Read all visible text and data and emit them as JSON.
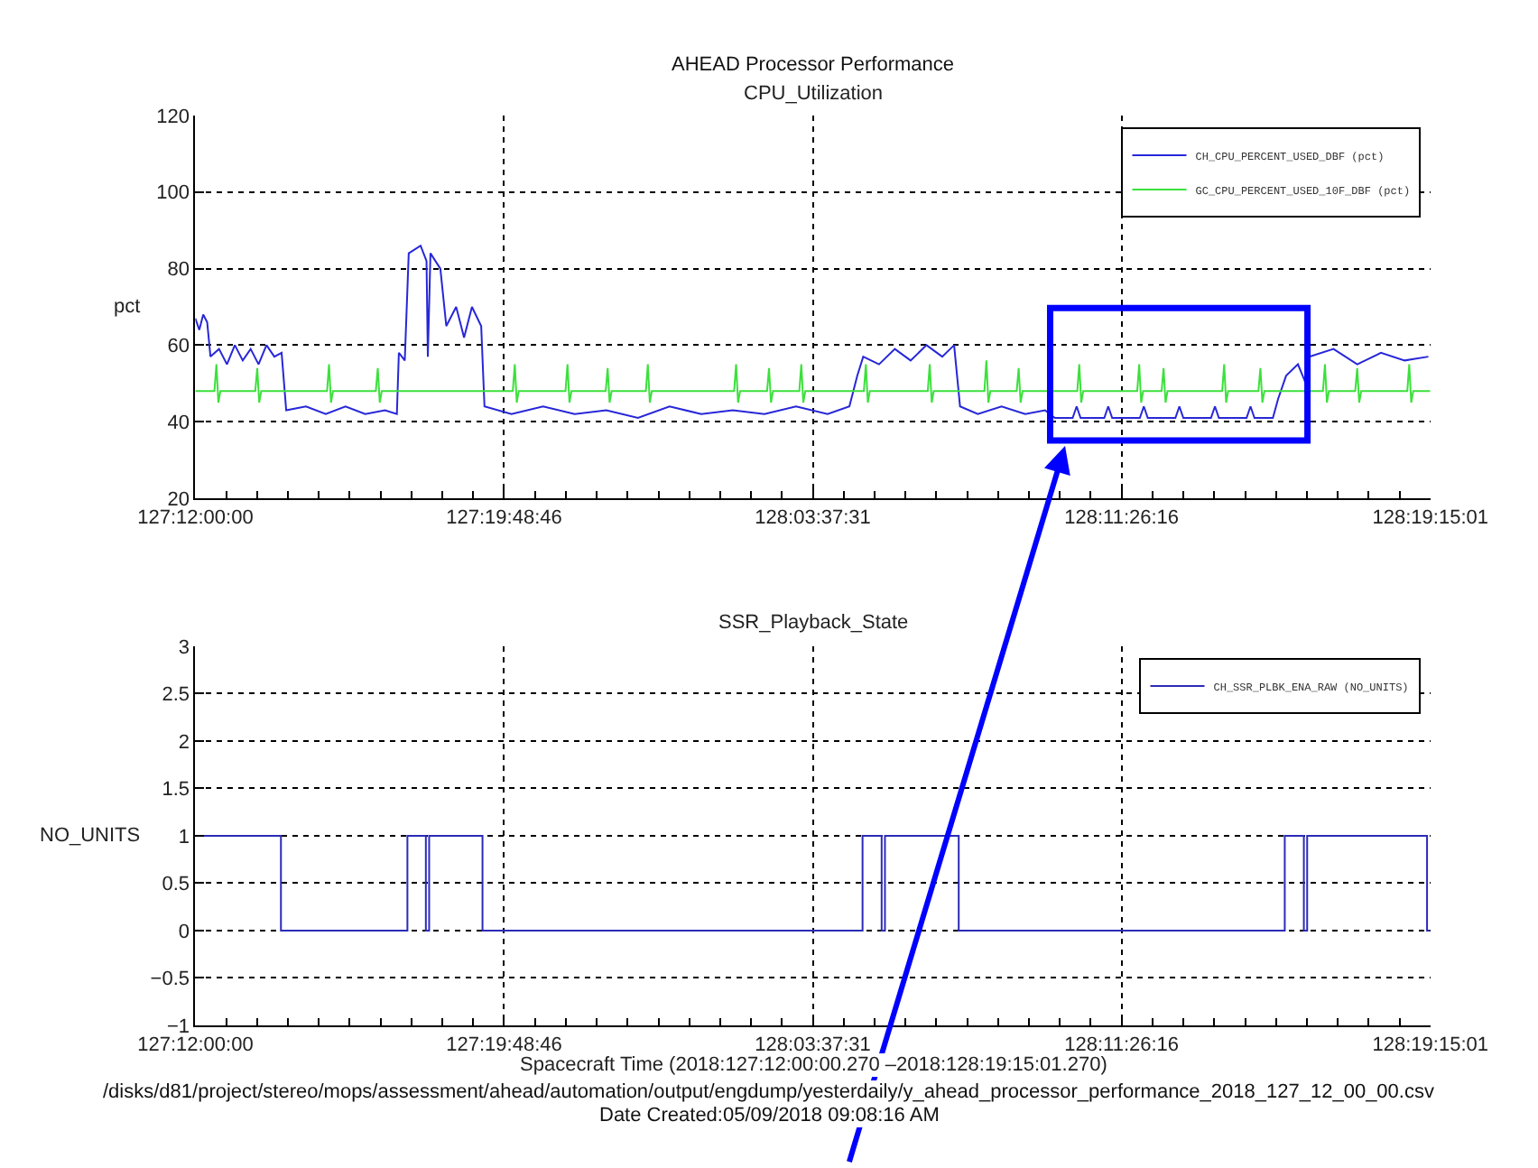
{
  "chart_data": [
    {
      "type": "line",
      "title": "AHEAD Processor Performance",
      "subtitle": "CPU_Utilization",
      "ylabel": "pct",
      "xlim": [
        "2018-05-07T12:00:00",
        "2018-05-08T19:15:01"
      ],
      "xticks": [
        {
          "value": "2018-05-07T12:00:00",
          "label": "127:12:00:00"
        },
        {
          "value": "2018-05-07T19:48:46",
          "label": "127:19:48:46"
        },
        {
          "value": "2018-05-08T03:37:31",
          "label": "128:03:37:31"
        },
        {
          "value": "2018-05-08T11:26:16",
          "label": "128:11:26:16"
        },
        {
          "value": "2018-05-08T19:15:01",
          "label": "128:19:15:01"
        }
      ],
      "ylim": [
        20,
        120
      ],
      "yticks": [
        20,
        40,
        60,
        80,
        100,
        120
      ],
      "grid": true,
      "legend": "top right",
      "series": [
        {
          "name": "CH_CPU_PERCENT_USED_DBF (pct)",
          "color": "#2727d8",
          "x": [
            "2018-05-07T12:00",
            "2018-05-07T12:06",
            "2018-05-07T12:12",
            "2018-05-07T12:18",
            "2018-05-07T12:23",
            "2018-05-07T12:36",
            "2018-05-07T12:48",
            "2018-05-07T13:00",
            "2018-05-07T13:12",
            "2018-05-07T13:24",
            "2018-05-07T13:36",
            "2018-05-07T13:48",
            "2018-05-07T14:00",
            "2018-05-07T14:11",
            "2018-05-07T14:18",
            "2018-05-07T14:48",
            "2018-05-07T15:18",
            "2018-05-07T15:48",
            "2018-05-07T16:18",
            "2018-05-07T16:48",
            "2018-05-07T17:06",
            "2018-05-07T17:09",
            "2018-05-07T17:18",
            "2018-05-07T17:24",
            "2018-05-07T17:42",
            "2018-05-07T17:51",
            "2018-05-07T17:53",
            "2018-05-07T17:57",
            "2018-05-07T18:12",
            "2018-05-07T18:21",
            "2018-05-07T18:36",
            "2018-05-07T18:48",
            "2018-05-07T19:00",
            "2018-05-07T19:14",
            "2018-05-07T19:19",
            "2018-05-07T20:00",
            "2018-05-07T20:48",
            "2018-05-07T21:36",
            "2018-05-07T22:24",
            "2018-05-07T23:12",
            "2018-05-08T00:00",
            "2018-05-08T00:48",
            "2018-05-08T01:36",
            "2018-05-08T02:24",
            "2018-05-08T03:12",
            "2018-05-08T04:00",
            "2018-05-08T04:33",
            "2018-05-08T04:45",
            "2018-05-08T04:54",
            "2018-05-08T05:18",
            "2018-05-08T05:42",
            "2018-05-08T06:06",
            "2018-05-08T06:30",
            "2018-05-08T06:54",
            "2018-05-08T07:12",
            "2018-05-08T07:21",
            "2018-05-08T07:48",
            "2018-05-08T08:24",
            "2018-05-08T09:00",
            "2018-05-08T09:30",
            "2018-05-08T09:45",
            "2018-05-08T10:12",
            "2018-05-08T10:18",
            "2018-05-08T10:24",
            "2018-05-08T11:00",
            "2018-05-08T11:06",
            "2018-05-08T11:12",
            "2018-05-08T11:54",
            "2018-05-08T12:00",
            "2018-05-08T12:06",
            "2018-05-08T12:48",
            "2018-05-08T12:54",
            "2018-05-08T13:00",
            "2018-05-08T13:42",
            "2018-05-08T13:48",
            "2018-05-08T13:54",
            "2018-05-08T14:36",
            "2018-05-08T14:42",
            "2018-05-08T14:48",
            "2018-05-08T15:16",
            "2018-05-08T15:24",
            "2018-05-08T15:36",
            "2018-05-08T15:54",
            "2018-05-08T16:06",
            "2018-05-08T16:12",
            "2018-05-08T16:48",
            "2018-05-08T17:24",
            "2018-05-08T18:00",
            "2018-05-08T18:36",
            "2018-05-08T19:12"
          ],
          "values": [
            67,
            64,
            68,
            66,
            57,
            59,
            55,
            60,
            56,
            59,
            55,
            60,
            57,
            58,
            43,
            44,
            42,
            44,
            42,
            43,
            42,
            58,
            56,
            84,
            86,
            82,
            57,
            84,
            80,
            65,
            70,
            62,
            70,
            65,
            44,
            42,
            44,
            42,
            43,
            41,
            44,
            42,
            43,
            42,
            44,
            42,
            44,
            52,
            57,
            55,
            59,
            56,
            60,
            57,
            60,
            44,
            42,
            44,
            42,
            43,
            41,
            41,
            44,
            41,
            41,
            44,
            41,
            41,
            44,
            41,
            41,
            44,
            41,
            41,
            44,
            41,
            41,
            44,
            41,
            41,
            46,
            52,
            55,
            50,
            57,
            59,
            55,
            58,
            56,
            57
          ]
        },
        {
          "name": "GC_CPU_PERCENT_USED_10F_DBF (pct)",
          "color": "#3ce03c",
          "x": [
            "2018-05-07T12:00",
            "2018-05-07T12:29",
            "2018-05-07T12:32",
            "2018-05-07T12:35",
            "2018-05-07T12:38",
            "2018-05-07T13:31",
            "2018-05-07T13:34",
            "2018-05-07T13:37",
            "2018-05-07T13:40",
            "2018-05-07T15:20",
            "2018-05-07T15:23",
            "2018-05-07T15:26",
            "2018-05-07T15:29",
            "2018-05-07T16:34",
            "2018-05-07T16:37",
            "2018-05-07T16:40",
            "2018-05-07T16:43",
            "2018-05-07T20:02",
            "2018-05-07T20:05",
            "2018-05-07T20:08",
            "2018-05-07T20:11",
            "2018-05-07T21:22",
            "2018-05-07T21:25",
            "2018-05-07T21:28",
            "2018-05-07T21:31",
            "2018-05-07T22:23",
            "2018-05-07T22:26",
            "2018-05-07T22:29",
            "2018-05-07T22:32",
            "2018-05-07T23:24",
            "2018-05-07T23:27",
            "2018-05-07T23:30",
            "2018-05-07T23:33",
            "2018-05-08T01:38",
            "2018-05-08T01:41",
            "2018-05-08T01:44",
            "2018-05-08T01:47",
            "2018-05-08T02:28",
            "2018-05-08T02:31",
            "2018-05-08T02:34",
            "2018-05-08T02:37",
            "2018-05-08T03:17",
            "2018-05-08T03:20",
            "2018-05-08T03:23",
            "2018-05-08T03:26",
            "2018-05-08T04:55",
            "2018-05-08T04:58",
            "2018-05-08T05:01",
            "2018-05-08T05:04",
            "2018-05-08T06:32",
            "2018-05-08T06:35",
            "2018-05-08T06:38",
            "2018-05-08T06:41",
            "2018-05-08T07:58",
            "2018-05-08T08:01",
            "2018-05-08T08:04",
            "2018-05-08T08:07",
            "2018-05-08T08:47",
            "2018-05-08T08:50",
            "2018-05-08T08:53",
            "2018-05-08T08:56",
            "2018-05-08T10:19",
            "2018-05-08T10:22",
            "2018-05-08T10:25",
            "2018-05-08T10:28",
            "2018-05-08T11:50",
            "2018-05-08T11:53",
            "2018-05-08T11:56",
            "2018-05-08T11:59",
            "2018-05-08T12:27",
            "2018-05-08T12:30",
            "2018-05-08T12:33",
            "2018-05-08T12:36",
            "2018-05-08T13:59",
            "2018-05-08T14:02",
            "2018-05-08T14:05",
            "2018-05-08T14:08",
            "2018-05-08T14:54",
            "2018-05-08T14:57",
            "2018-05-08T15:00",
            "2018-05-08T15:03",
            "2018-05-08T16:32",
            "2018-05-08T16:35",
            "2018-05-08T16:38",
            "2018-05-08T16:41",
            "2018-05-08T17:21",
            "2018-05-08T17:24",
            "2018-05-08T17:27",
            "2018-05-08T17:30",
            "2018-05-08T18:40",
            "2018-05-08T18:43",
            "2018-05-08T18:46",
            "2018-05-08T18:49",
            "2018-05-08T19:15"
          ],
          "values": [
            48,
            48,
            55,
            45,
            48,
            48,
            54,
            45,
            48,
            48,
            55,
            45,
            48,
            48,
            54,
            45,
            48,
            48,
            55,
            45,
            48,
            48,
            55,
            45,
            48,
            48,
            54,
            45,
            48,
            48,
            55,
            45,
            48,
            48,
            55,
            45,
            48,
            48,
            54,
            45,
            48,
            48,
            55,
            45,
            48,
            48,
            55,
            45,
            48,
            48,
            55,
            45,
            48,
            48,
            56,
            45,
            48,
            48,
            54,
            45,
            48,
            48,
            55,
            45,
            48,
            48,
            55,
            45,
            48,
            48,
            54,
            45,
            48,
            48,
            55,
            45,
            48,
            48,
            54,
            45,
            48,
            48,
            55,
            45,
            48,
            48,
            54,
            45,
            48,
            48,
            55,
            45,
            48,
            48
          ]
        }
      ]
    },
    {
      "type": "step",
      "title": "SSR_Playback_State",
      "xlabel": "Spacecraft Time (2018:127:12:00:00.270 –2018:128:19:15:01.270)",
      "ylabel": "NO_UNITS",
      "annotations": [
        "/disks/d81/project/stereo/mops/assessment/ahead/automation/output/engdump/yesterdaily/y_ahead_processor_performance_2018_127_12_00_00.csv",
        "Date Created:05/09/2018 09:08:16 AM"
      ],
      "xlim": [
        "2018-05-07T12:00:00",
        "2018-05-08T19:15:01"
      ],
      "xticks": [
        {
          "value": "2018-05-07T12:00:00",
          "label": "127:12:00:00"
        },
        {
          "value": "2018-05-07T19:48:46",
          "label": "127:19:48:46"
        },
        {
          "value": "2018-05-08T03:37:31",
          "label": "128:03:37:31"
        },
        {
          "value": "2018-05-08T11:26:16",
          "label": "128:11:26:16"
        },
        {
          "value": "2018-05-08T19:15:01",
          "label": "128:19:15:01"
        }
      ],
      "ylim": [
        -1,
        3
      ],
      "yticks": [
        -1,
        -0.5,
        0,
        0.5,
        1,
        1.5,
        2,
        2.5,
        3
      ],
      "grid": true,
      "legend": "top right",
      "series": [
        {
          "name": "CH_SSR_PLBK_ENA_RAW (NO_UNITS)",
          "color": "#2b2bb8",
          "x": [
            "2018-05-07T12:00",
            "2018-05-07T14:10",
            "2018-05-07T17:22",
            "2018-05-07T17:50",
            "2018-05-07T17:55",
            "2018-05-07T19:16",
            "2018-05-08T04:53",
            "2018-05-08T05:22",
            "2018-05-08T05:27",
            "2018-05-08T07:19",
            "2018-05-08T15:34",
            "2018-05-08T16:03",
            "2018-05-08T16:08",
            "2018-05-08T19:10",
            "2018-05-08T19:15"
          ],
          "values": [
            1,
            0,
            1,
            0,
            1,
            0,
            1,
            0,
            1,
            0,
            1,
            0,
            1,
            0,
            0
          ]
        }
      ]
    }
  ]
}
